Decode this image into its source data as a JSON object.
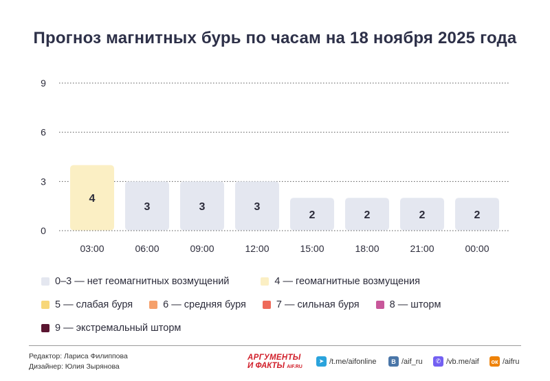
{
  "title": "Прогноз магнитных бурь по часам на 18 ноября 2025 года",
  "chart_data": {
    "type": "bar",
    "categories": [
      "03:00",
      "06:00",
      "09:00",
      "12:00",
      "15:00",
      "18:00",
      "21:00",
      "00:00"
    ],
    "values": [
      4,
      3,
      3,
      3,
      2,
      2,
      2,
      2
    ],
    "yticks": [
      0,
      3,
      6,
      9
    ],
    "ylim": [
      0,
      9
    ],
    "grid": true,
    "colors": {
      "0-3": "#e4e7f0",
      "4": "#fbefc4",
      "5": "#f7d77a",
      "6": "#f5a06b",
      "7": "#ee6a5a",
      "8": "#c8579a",
      "9": "#5a1530"
    }
  },
  "legend": [
    [
      {
        "label": "0–3 — нет геомагнитных возмущений",
        "color": "#e4e7f0"
      },
      {
        "label": "4 — геомагнитные возмущения",
        "color": "#fbefc4"
      }
    ],
    [
      {
        "label": "5 — слабая буря",
        "color": "#f7d77a"
      },
      {
        "label": "6 — средняя буря",
        "color": "#f5a06b"
      },
      {
        "label": "7 — сильная буря",
        "color": "#ee6a5a"
      },
      {
        "label": "8 — шторм",
        "color": "#c8579a"
      }
    ],
    [
      {
        "label": "9 — экстремальный шторм",
        "color": "#5a1530"
      }
    ]
  ],
  "credits": {
    "editor": "Редактор: Лариса Филиппова",
    "designer": "Дизайнер: Юлия Зырянова"
  },
  "logo": {
    "line1": "АРГУМЕНТЫ",
    "line2": "И ФАКТЫ",
    "suffix": "AIF.RU"
  },
  "social": [
    {
      "icon": "telegram-icon",
      "label": "/t.me/aifonline",
      "color": "#2aa3dc"
    },
    {
      "icon": "vk-icon",
      "label": "/aif_ru",
      "color": "#4a76a8"
    },
    {
      "icon": "viber-icon",
      "label": "/vb.me/aif",
      "color": "#7360f2"
    },
    {
      "icon": "odnoklassniki-icon",
      "label": "/aifru",
      "color": "#ee8208"
    }
  ]
}
